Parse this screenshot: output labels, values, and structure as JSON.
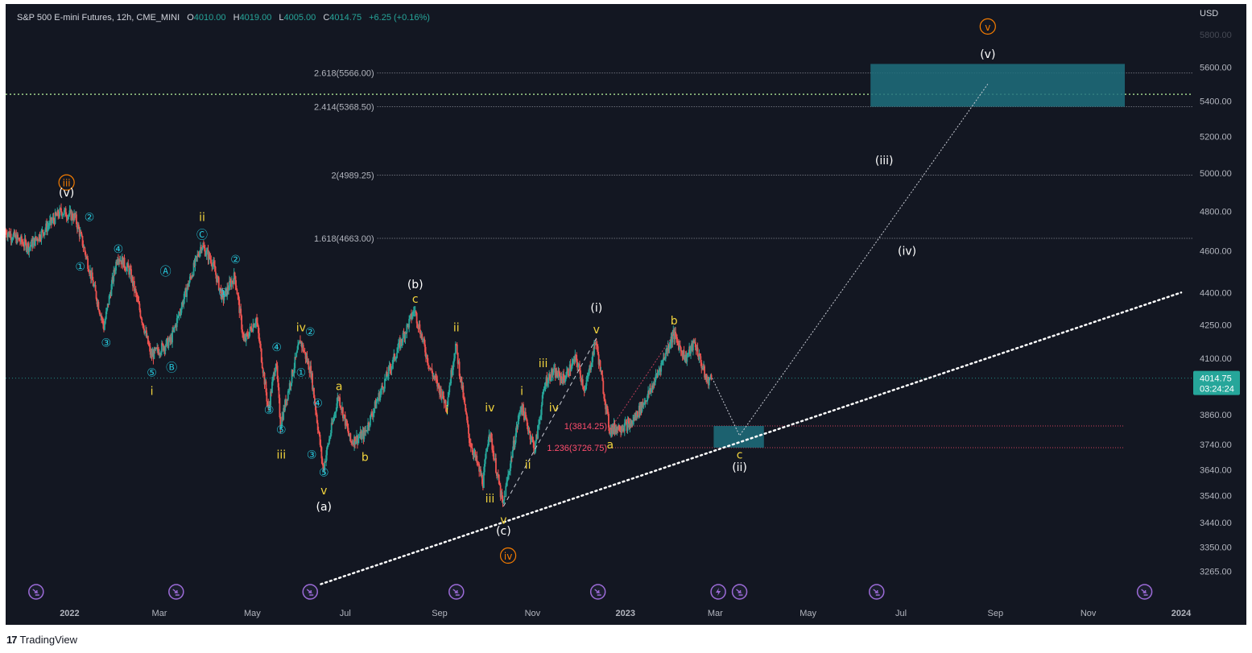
{
  "header": {
    "symbol": "S&P 500 E-mini Futures, 12h, CME_MINI",
    "open_label": "O",
    "open": "4010.00",
    "high_label": "H",
    "high": "4019.00",
    "low_label": "L",
    "low": "4005.00",
    "close_label": "C",
    "close": "4014.75",
    "change": "+6.25 (+0.16%)"
  },
  "footer": {
    "brand": "TradingView"
  },
  "colors": {
    "background": "#131722",
    "up": "#26a69a",
    "down": "#ef5350",
    "wave_white": "#ffffff",
    "wave_yellow": "#f2d43d",
    "wave_cyan": "#26c6da",
    "wave_orange": "#f57c00",
    "fib_red": "#ff4d6d",
    "zone_fill": "#1f6f7c",
    "event_purple": "#9c6bd8",
    "last_price": "#26a69a"
  },
  "chart_data": {
    "type": "candlestick",
    "title": "S&P 500 E-mini Futures, 12h, CME_MINI",
    "currency": "USD",
    "scale": "log",
    "ylim": [
      3180,
      5700
    ],
    "price_ticks": [
      "5600.00",
      "5400.00",
      "5200.00",
      "5000.00",
      "4800.00",
      "4600.00",
      "4400.00",
      "4250.00",
      "4100.00",
      "3860.00",
      "3740.00",
      "3640.00",
      "3540.00",
      "3440.00",
      "3350.00",
      "3265.00"
    ],
    "top_tick_partial": "5800.00",
    "time_ticks": [
      "2022",
      "Mar",
      "May",
      "Jul",
      "Sep",
      "Nov",
      "2023",
      "Mar",
      "May",
      "Jul",
      "Sep",
      "Nov",
      "2024"
    ],
    "last_price": {
      "value": 4014.75,
      "label": "4014.75",
      "countdown": "03:24:24"
    },
    "price_path": [
      [
        "2021-11-20",
        4700
      ],
      [
        "2021-12-06",
        4620
      ],
      [
        "2021-12-27",
        4800
      ],
      [
        "2022-01-05",
        4770
      ],
      [
        "2022-01-10",
        4640
      ],
      [
        "2022-01-24",
        4240
      ],
      [
        "2022-02-02",
        4580
      ],
      [
        "2022-02-10",
        4500
      ],
      [
        "2022-02-24",
        4110
      ],
      [
        "2022-03-09",
        4180
      ],
      [
        "2022-03-29",
        4630
      ],
      [
        "2022-04-05",
        4550
      ],
      [
        "2022-04-12",
        4370
      ],
      [
        "2022-04-20",
        4480
      ],
      [
        "2022-04-26",
        4170
      ],
      [
        "2022-05-04",
        4280
      ],
      [
        "2022-05-12",
        3880
      ],
      [
        "2022-05-17",
        4090
      ],
      [
        "2022-05-20",
        3820
      ],
      [
        "2022-06-02",
        4180
      ],
      [
        "2022-06-09",
        4040
      ],
      [
        "2022-06-17",
        3640
      ],
      [
        "2022-06-27",
        3940
      ],
      [
        "2022-07-05",
        3750
      ],
      [
        "2022-07-14",
        3780
      ],
      [
        "2022-08-16",
        4320
      ],
      [
        "2022-08-26",
        4060
      ],
      [
        "2022-09-06",
        3900
      ],
      [
        "2022-09-12",
        4160
      ],
      [
        "2022-09-21",
        3760
      ],
      [
        "2022-09-30",
        3590
      ],
      [
        "2022-10-04",
        3800
      ],
      [
        "2022-10-13",
        3500
      ],
      [
        "2022-10-25",
        3900
      ],
      [
        "2022-11-03",
        3720
      ],
      [
        "2022-11-10",
        4000
      ],
      [
        "2022-11-15",
        4040
      ],
      [
        "2022-11-22",
        4010
      ],
      [
        "2022-11-30",
        4100
      ],
      [
        "2022-12-06",
        3960
      ],
      [
        "2022-12-13",
        4180
      ],
      [
        "2022-12-22",
        3800
      ],
      [
        "2022-12-28",
        3810
      ],
      [
        "2023-01-05",
        3820
      ],
      [
        "2023-01-18",
        3960
      ],
      [
        "2023-01-23",
        4040
      ],
      [
        "2023-02-02",
        4210
      ],
      [
        "2023-02-10",
        4100
      ],
      [
        "2023-02-16",
        4170
      ],
      [
        "2023-02-24",
        4000
      ],
      [
        "2023-02-27",
        4015
      ]
    ],
    "projection_path": [
      [
        "2023-02-27",
        4015
      ],
      [
        "2023-03-17",
        3775
      ],
      [
        "2023-08-27",
        5500
      ]
    ],
    "fib_levels": [
      {
        "label": "2.618(5566.00)",
        "value": 5566.0,
        "color": "#b2b5be"
      },
      {
        "label": "2.414(5368.50)",
        "value": 5368.5,
        "color": "#b2b5be"
      },
      {
        "label": "2(4989.25)",
        "value": 4989.25,
        "color": "#b2b5be"
      },
      {
        "label": "1.618(4663.00)",
        "value": 4663.0,
        "color": "#b2b5be"
      },
      {
        "label": "1(3814.25)",
        "value": 3814.25,
        "color": "#ff4d6d"
      },
      {
        "label": "1.236(3726.75)",
        "value": 3726.75,
        "color": "#ff4d6d"
      }
    ],
    "horizontal_dotted": [
      {
        "value": 5440,
        "color": "#9fd18a"
      }
    ],
    "trendline": {
      "from": [
        "2022-06-15",
        3220
      ],
      "to": [
        "2024-01-01",
        4400
      ]
    },
    "zones": [
      {
        "x1": "2023-06-11",
        "x2": "2023-11-25",
        "y1": 5368.5,
        "y2": 5620
      },
      {
        "x1": "2023-02-28",
        "x2": "2023-04-02",
        "y1": 3726.75,
        "y2": 3814.25
      }
    ],
    "wave_labels": [
      {
        "text": "iii",
        "color": "orange",
        "circled": true,
        "t": "2021-12-30",
        "y": 4950
      },
      {
        "text": "(v)",
        "color": "white",
        "t": "2021-12-30",
        "y": 4790,
        "dy": -26
      },
      {
        "text": "②",
        "color": "cyan",
        "t": "2022-01-14",
        "y": 4770
      },
      {
        "text": "①",
        "color": "cyan",
        "t": "2022-01-08",
        "y": 4525
      },
      {
        "text": "④",
        "color": "cyan",
        "t": "2022-02-02",
        "y": 4610
      },
      {
        "text": "③",
        "color": "cyan",
        "t": "2022-01-25",
        "y": 4170
      },
      {
        "text": "⑤",
        "color": "cyan",
        "t": "2022-02-24",
        "y": 4040
      },
      {
        "text": "i",
        "color": "yellow",
        "t": "2022-02-24",
        "y": 3960
      },
      {
        "text": "Ⓐ",
        "color": "cyan",
        "t": "2022-03-05",
        "y": 4500
      },
      {
        "text": "Ⓑ",
        "color": "cyan",
        "t": "2022-03-09",
        "y": 4060
      },
      {
        "text": "ii",
        "color": "yellow",
        "t": "2022-03-29",
        "y": 4770
      },
      {
        "text": "Ⓒ",
        "color": "cyan",
        "t": "2022-03-29",
        "y": 4680
      },
      {
        "text": "②",
        "color": "cyan",
        "t": "2022-04-20",
        "y": 4560
      },
      {
        "text": "①",
        "color": "cyan",
        "t": "2022-04-12",
        "y": 4400
      },
      {
        "text": "④",
        "color": "cyan",
        "t": "2022-05-17",
        "y": 4150
      },
      {
        "text": "③",
        "color": "cyan",
        "t": "2022-05-12",
        "y": 3880
      },
      {
        "text": "⑤",
        "color": "cyan",
        "t": "2022-05-20",
        "y": 3800
      },
      {
        "text": "iii",
        "color": "yellow",
        "t": "2022-05-20",
        "y": 3700
      },
      {
        "text": "iv",
        "color": "yellow",
        "t": "2022-06-02",
        "y": 4240
      },
      {
        "text": "②",
        "color": "cyan",
        "t": "2022-06-08",
        "y": 4220
      },
      {
        "text": "①",
        "color": "cyan",
        "t": "2022-06-02",
        "y": 4040
      },
      {
        "text": "④",
        "color": "cyan",
        "t": "2022-06-13",
        "y": 3910
      },
      {
        "text": "③",
        "color": "cyan",
        "t": "2022-06-09",
        "y": 3700
      },
      {
        "text": "⑤",
        "color": "cyan",
        "t": "2022-06-17",
        "y": 3630
      },
      {
        "text": "v",
        "color": "yellow",
        "t": "2022-06-17",
        "y": 3560
      },
      {
        "text": "(a)",
        "color": "white",
        "t": "2022-06-17",
        "y": 3500
      },
      {
        "text": "a",
        "color": "yellow",
        "t": "2022-06-27",
        "y": 3980
      },
      {
        "text": "b",
        "color": "yellow",
        "t": "2022-07-14",
        "y": 3690
      },
      {
        "text": "(b)",
        "color": "white",
        "t": "2022-08-16",
        "y": 4440
      },
      {
        "text": "c",
        "color": "yellow",
        "t": "2022-08-16",
        "y": 4370
      },
      {
        "text": "i",
        "color": "yellow",
        "t": "2022-09-06",
        "y": 3880
      },
      {
        "text": "ii",
        "color": "yellow",
        "t": "2022-09-12",
        "y": 4240
      },
      {
        "text": "iii",
        "color": "yellow",
        "t": "2022-10-04",
        "y": 3530
      },
      {
        "text": "iv",
        "color": "yellow",
        "t": "2022-10-04",
        "y": 3890
      },
      {
        "text": "v",
        "color": "yellow",
        "t": "2022-10-13",
        "y": 3450
      },
      {
        "text": "(c)",
        "color": "white",
        "t": "2022-10-13",
        "y": 3410
      },
      {
        "text": "iv",
        "color": "orange",
        "circled": true,
        "t": "2022-10-16",
        "y": 3320
      },
      {
        "text": "i",
        "color": "yellow",
        "t": "2022-10-25",
        "y": 3960
      },
      {
        "text": "ii",
        "color": "yellow",
        "t": "2022-10-29",
        "y": 3660
      },
      {
        "text": "iii",
        "color": "yellow",
        "t": "2022-11-08",
        "y": 4080
      },
      {
        "text": "iv",
        "color": "yellow",
        "t": "2022-11-15",
        "y": 3890
      },
      {
        "text": "(i)",
        "color": "white",
        "t": "2022-12-13",
        "y": 4330
      },
      {
        "text": "v",
        "color": "yellow",
        "t": "2022-12-13",
        "y": 4230
      },
      {
        "text": "a",
        "color": "yellow",
        "t": "2022-12-22",
        "y": 3740
      },
      {
        "text": "b",
        "color": "yellow",
        "t": "2023-02-02",
        "y": 4270
      },
      {
        "text": "c",
        "color": "yellow",
        "t": "2023-03-17",
        "y": 3700
      },
      {
        "text": "(ii)",
        "color": "white",
        "t": "2023-03-17",
        "y": 3650
      },
      {
        "text": "(iii)",
        "color": "white",
        "t": "2023-06-20",
        "y": 5070
      },
      {
        "text": "(iv)",
        "color": "white",
        "t": "2023-07-05",
        "y": 4600
      },
      {
        "text": "v",
        "color": "orange",
        "circled": true,
        "t": "2023-08-27",
        "y": 5850
      },
      {
        "text": "(v)",
        "color": "white",
        "t": "2023-08-27",
        "y": 5680
      }
    ],
    "event_markers": [
      {
        "t": "2021-12-10",
        "icon": "event-arrow-icon"
      },
      {
        "t": "2022-03-12",
        "icon": "event-arrow-icon"
      },
      {
        "t": "2022-06-08",
        "icon": "event-arrow-icon"
      },
      {
        "t": "2022-09-12",
        "icon": "event-arrow-icon"
      },
      {
        "t": "2022-12-14",
        "icon": "event-arrow-icon"
      },
      {
        "t": "2023-03-03",
        "icon": "event-lightning-icon"
      },
      {
        "t": "2023-03-17",
        "icon": "event-arrow-icon"
      },
      {
        "t": "2023-06-15",
        "icon": "event-arrow-icon"
      },
      {
        "t": "2023-12-08",
        "icon": "event-arrow-icon"
      }
    ]
  }
}
